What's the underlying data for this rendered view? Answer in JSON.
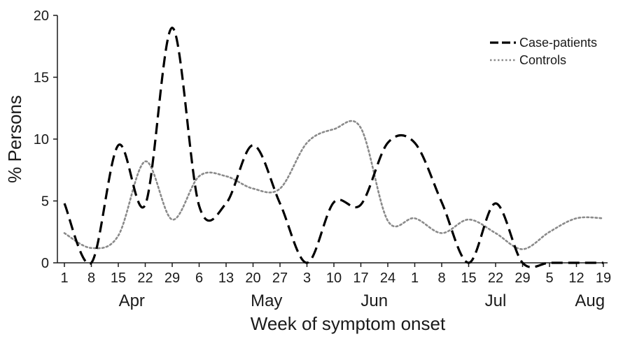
{
  "chart_data": {
    "type": "line",
    "title": "",
    "xlabel": "Week of symptom onset",
    "ylabel": "% Persons",
    "ylim": [
      0,
      20
    ],
    "yticks": [
      0,
      5,
      10,
      15,
      20
    ],
    "x_tick_labels": [
      "1",
      "8",
      "15",
      "22",
      "29",
      "6",
      "13",
      "20",
      "27",
      "3",
      "10",
      "17",
      "24",
      "1",
      "8",
      "15",
      "22",
      "29",
      "5",
      "12",
      "19"
    ],
    "month_labels": [
      {
        "label": "Apr",
        "center_week": 2.5
      },
      {
        "label": "May",
        "center_week": 7.5
      },
      {
        "label": "Jun",
        "center_week": 11.5
      },
      {
        "label": "Jul",
        "center_week": 16.0
      },
      {
        "label": "Aug",
        "center_week": 19.5
      }
    ],
    "grid": false,
    "legend_position": "top-right",
    "series": [
      {
        "name": "Case-patients",
        "style": "dashed",
        "color": "#000000",
        "values": [
          4.8,
          0.0,
          9.5,
          4.7,
          19.0,
          4.6,
          4.8,
          9.5,
          4.8,
          0.0,
          4.9,
          4.7,
          9.7,
          9.7,
          4.9,
          0.0,
          4.8,
          0.0,
          0.0,
          0.0,
          0.0
        ]
      },
      {
        "name": "Controls",
        "style": "dotted",
        "color": "#8a8a8a",
        "values": [
          2.4,
          1.2,
          2.2,
          8.2,
          3.5,
          7.0,
          7.0,
          6.0,
          6.0,
          9.7,
          10.8,
          10.9,
          3.4,
          3.6,
          2.4,
          3.5,
          2.4,
          1.1,
          2.5,
          3.6,
          3.6
        ]
      }
    ]
  }
}
